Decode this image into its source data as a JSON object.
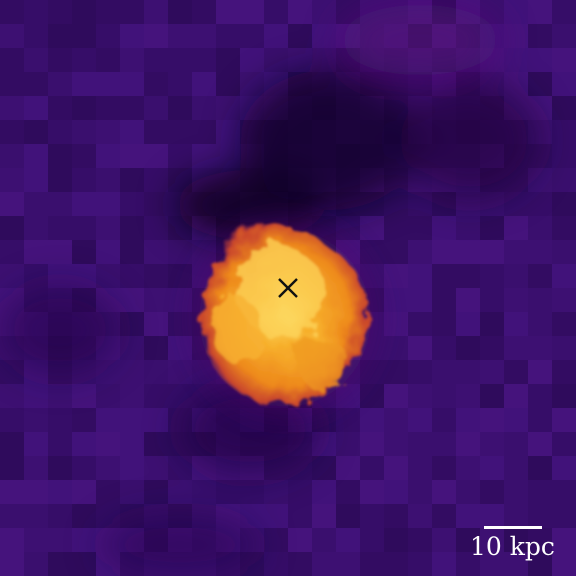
{
  "image": {
    "description_colormap": "inferno",
    "background_color": "#3a0f6e",
    "core_colors": [
      "#f7c23a",
      "#f59a1f",
      "#e0672a",
      "#a8323f"
    ],
    "marker_icon": "x-mark-icon"
  },
  "scale_bar": {
    "label": "10 kpc",
    "color": "#ffffff"
  }
}
